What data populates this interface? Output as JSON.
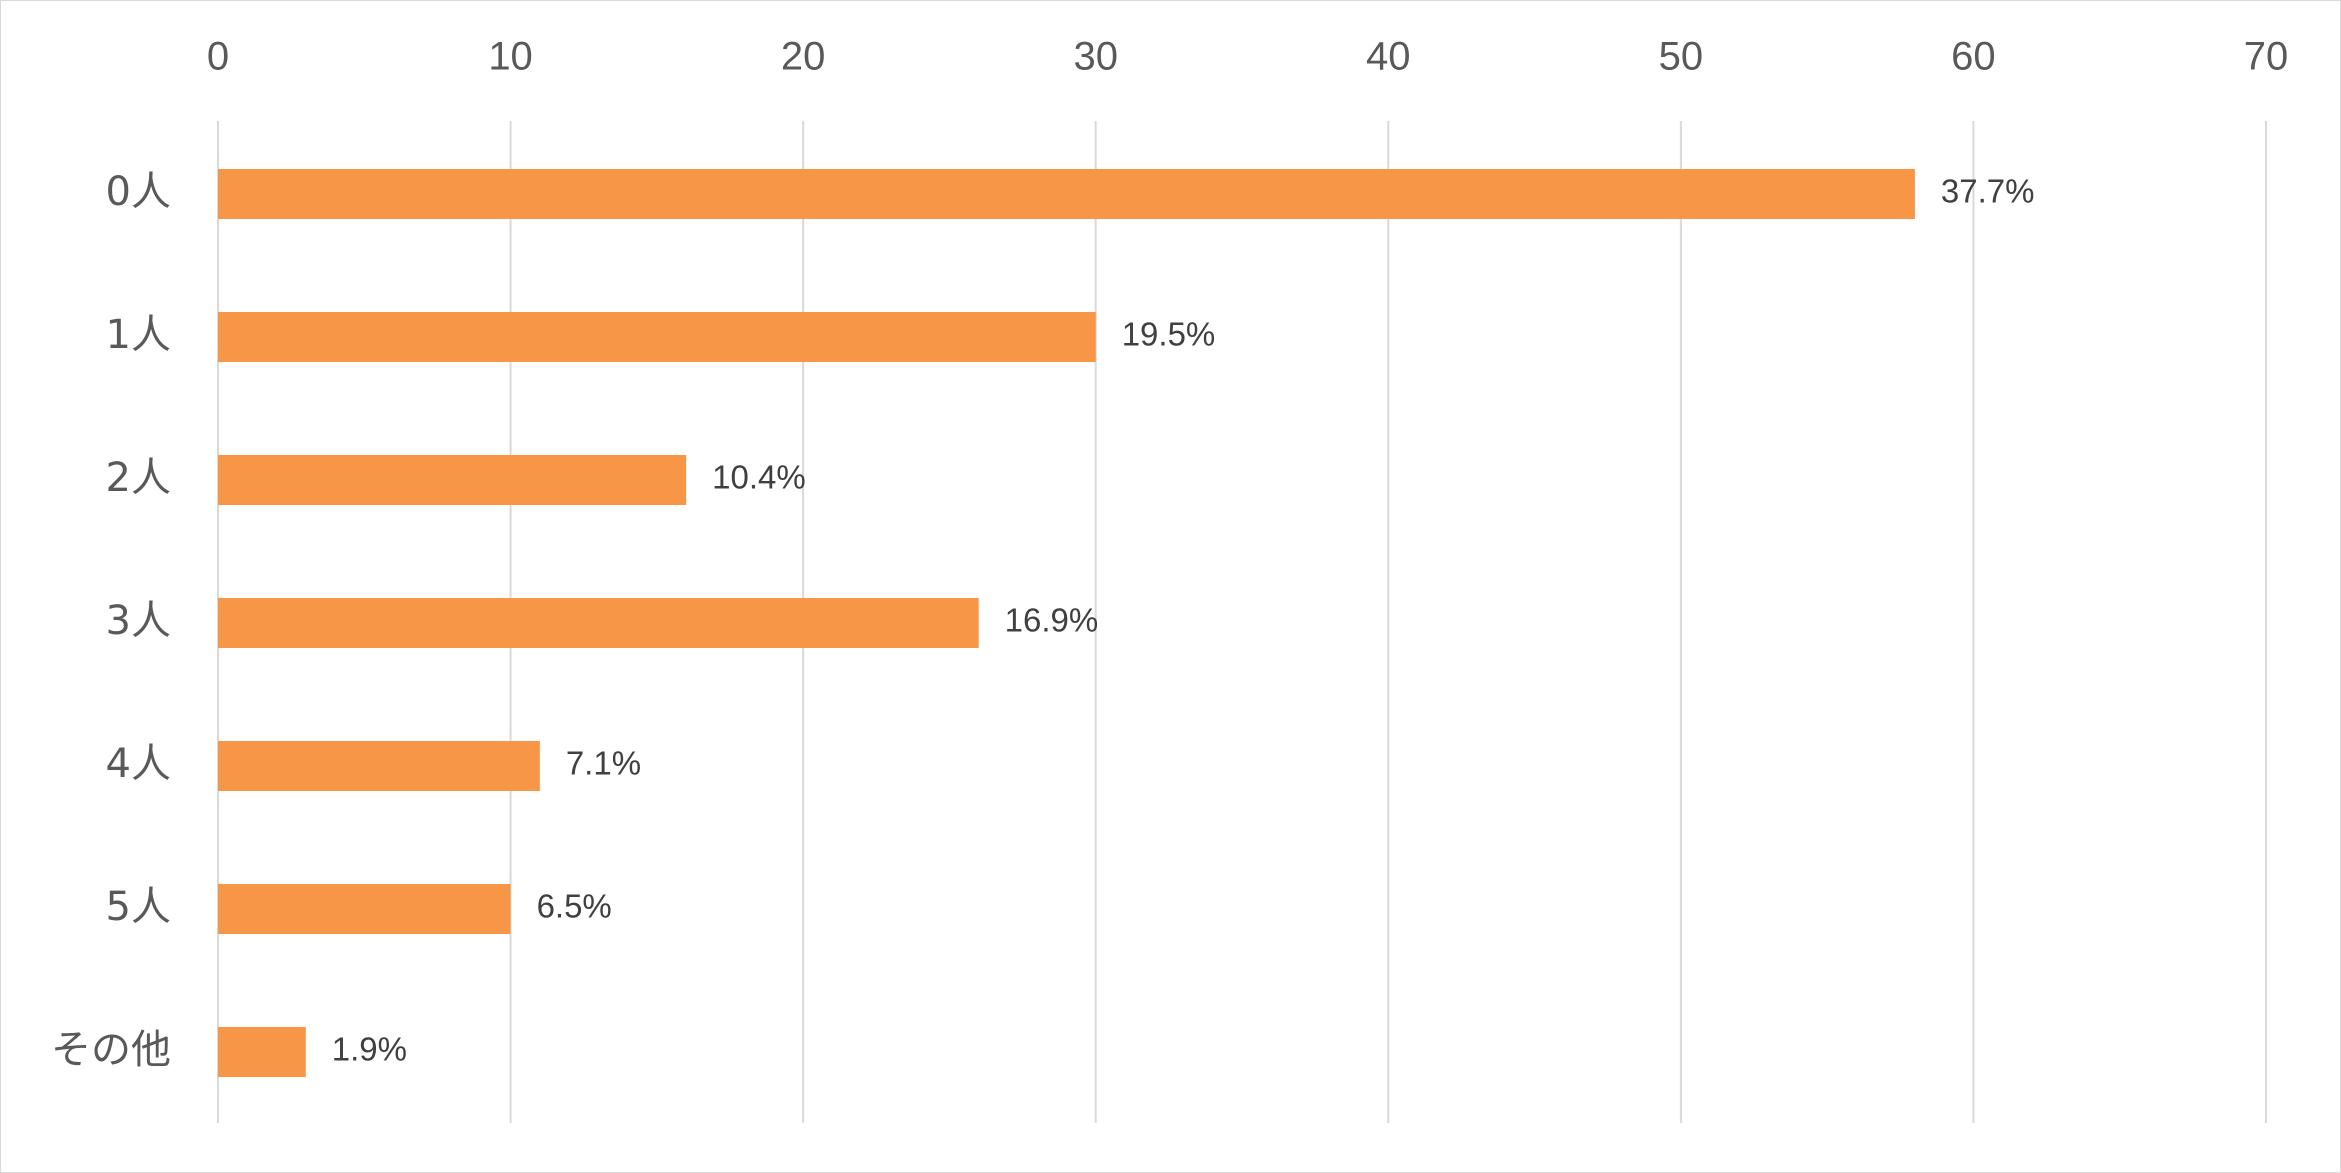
{
  "chart_data": {
    "type": "bar",
    "orientation": "horizontal",
    "categories": [
      "0人",
      "1人",
      "2人",
      "3人",
      "4人",
      "5人",
      "その他"
    ],
    "values": [
      58,
      30,
      16,
      26,
      11,
      10,
      3
    ],
    "data_labels": [
      "37.7%",
      "19.5%",
      "10.4%",
      "16.9%",
      "7.1%",
      "6.5%",
      "1.9%"
    ],
    "x_ticks": [
      "0",
      "10",
      "20",
      "30",
      "40",
      "50",
      "60",
      "70"
    ],
    "xlim": [
      0,
      70
    ],
    "axis_position": "top",
    "grid": true,
    "legend": "none",
    "colors": {
      "bar": "#f79646",
      "grid": "#d9d9d9",
      "text": "#595959",
      "label": "#404040"
    }
  }
}
